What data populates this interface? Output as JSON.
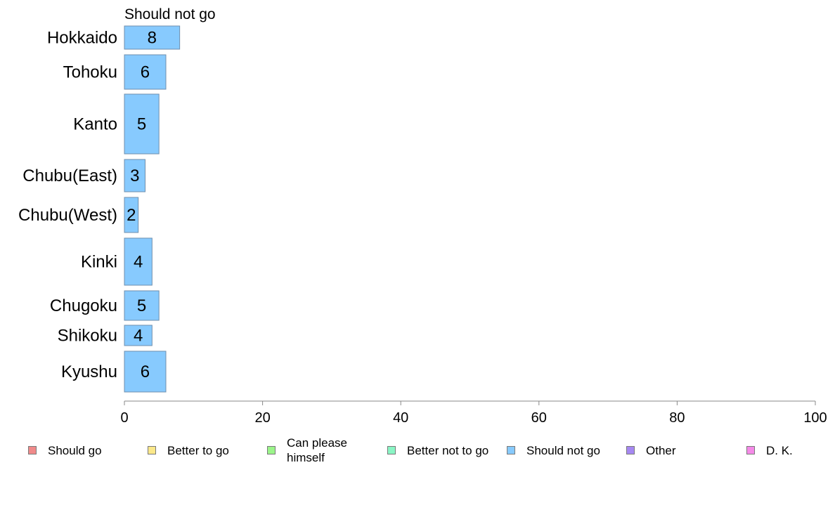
{
  "chart_data": {
    "type": "bar",
    "orientation": "horizontal",
    "stacked": true,
    "panel_label": "Should not go",
    "categories": [
      "Hokkaido",
      "Tohoku",
      "Kanto",
      "Chubu(East)",
      "Chubu(West)",
      "Kinki",
      "Chugoku",
      "Shikoku",
      "Kyushu"
    ],
    "series": [
      {
        "name": "Should not go",
        "values": [
          8,
          6,
          5,
          3,
          2,
          4,
          5,
          4,
          6
        ],
        "color": "#87cafe"
      }
    ],
    "data_labels": [
      "8",
      "6",
      "5",
      "3",
      "2",
      "4",
      "5",
      "4",
      "6"
    ],
    "xlim": [
      0,
      100
    ],
    "x_ticks": [
      0,
      20,
      40,
      60,
      80,
      100
    ],
    "grid": false,
    "legend_position": "bottom",
    "legend": [
      {
        "label": "Should go",
        "color": "#f08a8a"
      },
      {
        "label": "Better to go",
        "color": "#fbe88a"
      },
      {
        "label": "Can please himself",
        "color": "#9bf58a"
      },
      {
        "label": "Better not to go",
        "color": "#8af5c5"
      },
      {
        "label": "Should not go",
        "color": "#87cafe"
      },
      {
        "label": "Other",
        "color": "#a688f2"
      },
      {
        "label": "D. K.",
        "color": "#f58ae8"
      }
    ]
  }
}
